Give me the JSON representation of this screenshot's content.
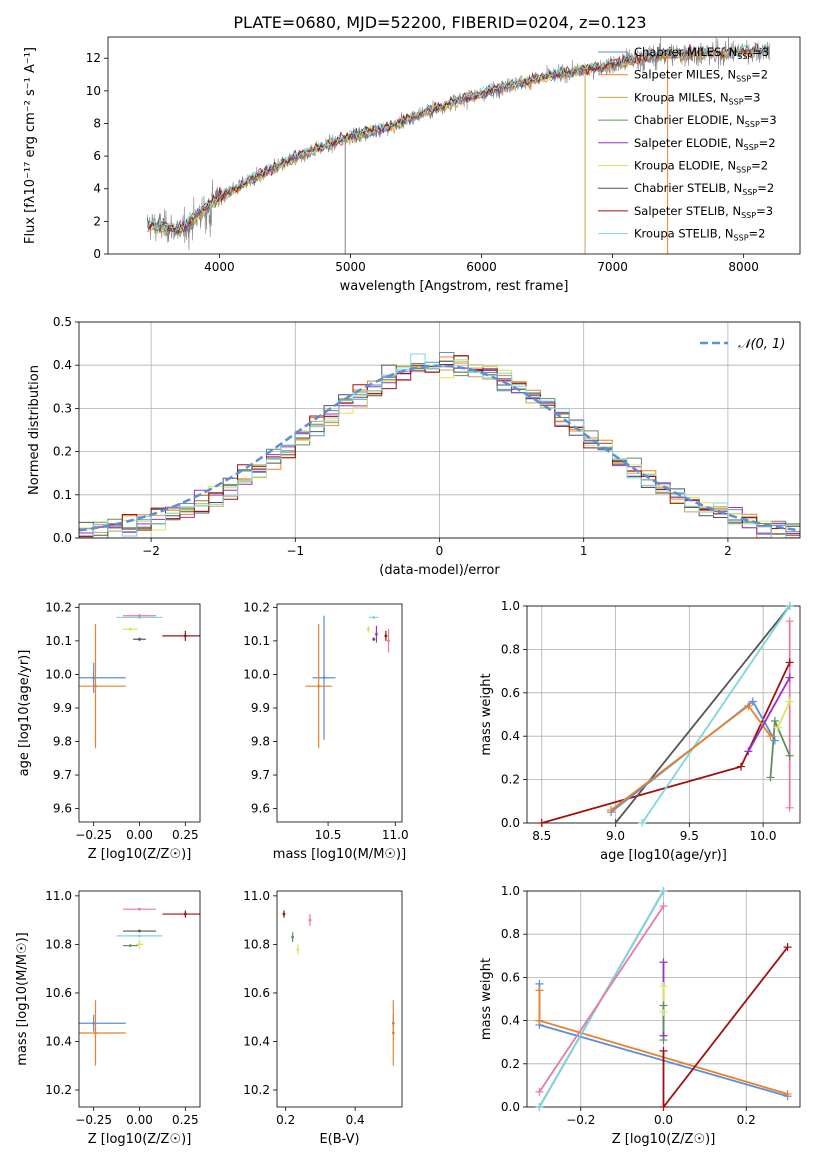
{
  "title": "PLATE=0680, MJD=52200, FIBERID=0204, z=0.123",
  "series_colors": {
    "Chabrier MILES": "#5b8fd6",
    "Salpeter MILES": "#e8822a",
    "Kroupa MILES": "#c9a64a",
    "Chabrier ELODIE": "#5f8f5f",
    "Salpeter ELODIE": "#9b30c2",
    "Kroupa ELODIE": "#d9e65a",
    "Chabrier STELIB": "#555555",
    "Salpeter STELIB": "#a01010",
    "Kroupa STELIB": "#7fd6e0",
    "pink": "#e87aa8",
    "green": "#4aa84a",
    "observed": "#808080"
  },
  "chart_data": [
    {
      "type": "line",
      "panel": "spectrum",
      "title": "PLATE=0680, MJD=52200, FIBERID=0204, z=0.123",
      "xlabel": "wavelength [Angstrom, rest frame]",
      "ylabel": "Flux [fλ10⁻¹⁷ erg cm⁻² s⁻¹ A⁻¹]",
      "xlim": [
        3150,
        8430
      ],
      "ylim": [
        0,
        13.3
      ],
      "xticks": [
        "4000",
        "5000",
        "6000",
        "7000",
        "8000"
      ],
      "yticks": [
        "0",
        "2",
        "4",
        "6",
        "8",
        "10",
        "12"
      ],
      "legend_position": "top-right",
      "legend": [
        {
          "base": "Chabrier MILES, N",
          "sub": "SSP",
          "tail": "=3"
        },
        {
          "base": "Salpeter MILES, N",
          "sub": "SSP",
          "tail": "=2"
        },
        {
          "base": "Kroupa MILES, N",
          "sub": "SSP",
          "tail": "=3"
        },
        {
          "base": "Chabrier ELODIE, N",
          "sub": "SSP",
          "tail": "=3"
        },
        {
          "base": "Salpeter ELODIE, N",
          "sub": "SSP",
          "tail": "=2"
        },
        {
          "base": "Kroupa ELODIE, N",
          "sub": "SSP",
          "tail": "=2"
        },
        {
          "base": "Chabrier STELIB, N",
          "sub": "SSP",
          "tail": "=2"
        },
        {
          "base": "Salpeter STELIB, N",
          "sub": "SSP",
          "tail": "=3"
        },
        {
          "base": "Kroupa STELIB, N",
          "sub": "SSP",
          "tail": "=2"
        }
      ],
      "continuum": {
        "x": [
          3450,
          3700,
          3950,
          4250,
          4600,
          5000,
          5300,
          5600,
          5900,
          6200,
          6500,
          6800,
          7100,
          7400,
          7700,
          8000,
          8200
        ],
        "y": [
          1.8,
          1.5,
          3.2,
          4.6,
          6.0,
          7.2,
          7.8,
          8.8,
          9.6,
          10.3,
          10.9,
          11.3,
          11.8,
          12.2,
          12.3,
          12.4,
          12.5
        ]
      },
      "absorption_spikes_x": [
        4960,
        6790,
        7420
      ]
    },
    {
      "type": "histogram",
      "panel": "residuals",
      "xlabel": "(data-model)/error",
      "ylabel": "Normed distribution",
      "xlim": [
        -2.5,
        2.5
      ],
      "ylim": [
        0,
        0.5
      ],
      "xticks": [
        "−2",
        "−1",
        "0",
        "1",
        "2"
      ],
      "yticks": [
        "0.0",
        "0.1",
        "0.2",
        "0.3",
        "0.4",
        "0.5"
      ],
      "reference_curve": "𝒩(0, 1)",
      "legend_position": "top-right",
      "bin_width": 0.1
    },
    {
      "type": "scatter",
      "panel": "Z-age",
      "xlabel": "Z [log10(Z/Z☉)]",
      "ylabel": "age  [log10(age/yr)]",
      "xlim": [
        -0.33,
        0.33
      ],
      "ylim": [
        9.56,
        10.21
      ],
      "xticks": [
        "−0.25",
        "0.00",
        "0.25"
      ],
      "yticks": [
        "9.6",
        "9.7",
        "9.8",
        "9.9",
        "10.0",
        "10.1",
        "10.2"
      ],
      "points": [
        {
          "s": "Chabrier MILES",
          "x": -0.25,
          "y": 9.99,
          "xe": 0.35,
          "ye": 0.09
        },
        {
          "s": "Salpeter MILES",
          "x": -0.24,
          "y": 9.965,
          "xe": 0.33,
          "ye": 0.37
        },
        {
          "s": "Salpeter STELIB",
          "x": 0.25,
          "y": 10.115,
          "xe": 0.25,
          "ye": 0.03
        },
        {
          "s": "Kroupa STELIB",
          "x": 0.0,
          "y": 10.17,
          "xe": 0.25,
          "ye": 0.01
        },
        {
          "s": "Chabrier STELIB",
          "x": 0.0,
          "y": 10.105,
          "xe": 0.07,
          "ye": 0.01
        },
        {
          "s": "Kroupa ELODIE",
          "x": -0.05,
          "y": 10.135,
          "xe": 0.08,
          "ye": 0.01
        },
        {
          "s": "pink",
          "x": 0.0,
          "y": 10.175,
          "xe": 0.18,
          "ye": 0.01
        }
      ]
    },
    {
      "type": "scatter",
      "panel": "mass-age",
      "xlabel": "mass [log10(M/M☉)]",
      "ylabel": "",
      "xlim": [
        10.12,
        11.05
      ],
      "ylim": [
        9.56,
        10.21
      ],
      "xticks": [
        "10.5",
        "11.0"
      ],
      "yticks": [
        "9.6",
        "9.7",
        "9.8",
        "9.9",
        "10.0",
        "10.1",
        "10.2"
      ],
      "points": [
        {
          "s": "Chabrier MILES",
          "x": 10.47,
          "y": 9.99,
          "xe": 0.17,
          "ye": 0.37
        },
        {
          "s": "Salpeter MILES",
          "x": 10.43,
          "y": 9.965,
          "xe": 0.2,
          "ye": 0.37
        },
        {
          "s": "Salpeter STELIB",
          "x": 10.93,
          "y": 10.115,
          "xe": 0.02,
          "ye": 0.03
        },
        {
          "s": "Kroupa STELIB",
          "x": 10.84,
          "y": 10.17,
          "xe": 0.07,
          "ye": 0.01
        },
        {
          "s": "Chabrier STELIB",
          "x": 10.84,
          "y": 10.105,
          "xe": 0.02,
          "ye": 0.01
        },
        {
          "s": "Kroupa ELODIE",
          "x": 10.8,
          "y": 10.135,
          "xe": 0.03,
          "ye": 0.02
        },
        {
          "s": "Salpeter ELODIE",
          "x": 10.86,
          "y": 10.12,
          "xe": 0.01,
          "ye": 0.05
        },
        {
          "s": "pink",
          "x": 10.95,
          "y": 10.1,
          "xe": 0.0,
          "ye": 0.07
        }
      ]
    },
    {
      "type": "line",
      "panel": "age-weight",
      "xlabel": "age  [log10(age/yr)]",
      "ylabel": "mass weight",
      "xlim": [
        8.4,
        10.25
      ],
      "ylim": [
        0,
        1
      ],
      "xticks": [
        "8.5",
        "9.0",
        "9.5",
        "10.0"
      ],
      "yticks": [
        "0.0",
        "0.2",
        "0.4",
        "0.6",
        "0.8",
        "1.0"
      ],
      "series": [
        {
          "s": "Salpeter STELIB",
          "x": [
            8.5,
            9.85,
            10.18
          ],
          "y": [
            0.0,
            0.26,
            0.74
          ]
        },
        {
          "s": "Chabrier STELIB",
          "x": [
            9.0,
            10.18
          ],
          "y": [
            0.0,
            1.0
          ]
        },
        {
          "s": "Kroupa STELIB",
          "x": [
            9.18,
            10.18
          ],
          "y": [
            0.0,
            1.0
          ]
        },
        {
          "s": "Chabrier MILES",
          "x": [
            8.97,
            9.93,
            10.08
          ],
          "y": [
            0.05,
            0.56,
            0.38
          ]
        },
        {
          "s": "Salpeter MILES",
          "x": [
            8.97,
            9.9,
            10.05
          ],
          "y": [
            0.06,
            0.54,
            0.4
          ]
        },
        {
          "s": "Salpeter ELODIE",
          "x": [
            9.9,
            10.18
          ],
          "y": [
            0.33,
            0.67
          ]
        },
        {
          "s": "Chabrier ELODIE",
          "x": [
            10.05,
            10.08,
            10.18
          ],
          "y": [
            0.21,
            0.47,
            0.31
          ]
        },
        {
          "s": "Kroupa ELODIE",
          "x": [
            10.1,
            10.18
          ],
          "y": [
            0.44,
            0.56
          ]
        },
        {
          "s": "pink",
          "x": [
            10.18,
            10.18
          ],
          "y": [
            0.07,
            0.93
          ]
        }
      ]
    },
    {
      "type": "scatter",
      "panel": "Z-mass",
      "xlabel": "Z [log10(Z/Z☉)]",
      "ylabel": "mass [log10(M/M☉)]",
      "xlim": [
        -0.33,
        0.33
      ],
      "ylim": [
        10.13,
        11.02
      ],
      "xticks": [
        "−0.25",
        "0.00",
        "0.25"
      ],
      "yticks": [
        "10.2",
        "10.4",
        "10.6",
        "10.8",
        "11.0"
      ],
      "points": [
        {
          "s": "Chabrier MILES",
          "x": -0.25,
          "y": 10.475,
          "xe": 0.35,
          "ye": 0.07
        },
        {
          "s": "Salpeter MILES",
          "x": -0.24,
          "y": 10.435,
          "xe": 0.33,
          "ye": 0.27
        },
        {
          "s": "Salpeter STELIB",
          "x": 0.25,
          "y": 10.925,
          "xe": 0.25,
          "ye": 0.03
        },
        {
          "s": "Kroupa STELIB",
          "x": 0.0,
          "y": 10.835,
          "xe": 0.25,
          "ye": 0.01
        },
        {
          "s": "Chabrier STELIB",
          "x": 0.0,
          "y": 10.855,
          "xe": 0.18,
          "ye": 0.01
        },
        {
          "s": "Chabrier ELODIE",
          "x": -0.05,
          "y": 10.795,
          "xe": 0.08,
          "ye": 0.01
        },
        {
          "s": "Kroupa ELODIE",
          "x": 0.0,
          "y": 10.8,
          "xe": 0.04,
          "ye": 0.04
        },
        {
          "s": "pink",
          "x": 0.0,
          "y": 10.945,
          "xe": 0.18,
          "ye": 0.01
        }
      ]
    },
    {
      "type": "scatter",
      "panel": "EBV-mass",
      "xlabel": "E(B-V)",
      "ylabel": "",
      "xlim": [
        0.175,
        0.535
      ],
      "ylim": [
        10.13,
        11.02
      ],
      "xticks": [
        "0.2",
        "0.4"
      ],
      "yticks": [
        "10.2",
        "10.4",
        "10.6",
        "10.8",
        "11.0"
      ],
      "points": [
        {
          "s": "Chabrier MILES",
          "x": 0.51,
          "y": 10.475,
          "xe": 0,
          "ye": 0.07
        },
        {
          "s": "Salpeter MILES",
          "x": 0.51,
          "y": 10.435,
          "xe": 0,
          "ye": 0.27
        },
        {
          "s": "Salpeter STELIB",
          "x": 0.195,
          "y": 10.925,
          "xe": 0,
          "ye": 0.03
        },
        {
          "s": "Chabrier ELODIE",
          "x": 0.22,
          "y": 10.83,
          "xe": 0,
          "ye": 0.04
        },
        {
          "s": "Kroupa ELODIE",
          "x": 0.235,
          "y": 10.78,
          "xe": 0,
          "ye": 0.04
        },
        {
          "s": "pink",
          "x": 0.27,
          "y": 10.9,
          "xe": 0,
          "ye": 0.05
        }
      ]
    },
    {
      "type": "line",
      "panel": "Z-weight",
      "xlabel": "Z [log10(Z/Z☉)]",
      "ylabel": "mass weight",
      "xlim": [
        -0.33,
        0.33
      ],
      "ylim": [
        0,
        1
      ],
      "xticks": [
        "−0.2",
        "0.0",
        "0.2"
      ],
      "yticks": [
        "0.0",
        "0.2",
        "0.4",
        "0.6",
        "0.8",
        "1.0"
      ],
      "series": [
        {
          "s": "Chabrier MILES",
          "x": [
            -0.3,
            -0.3,
            0.3
          ],
          "y": [
            0.57,
            0.38,
            0.05
          ]
        },
        {
          "s": "Salpeter MILES",
          "x": [
            -0.3,
            -0.3,
            0.3
          ],
          "y": [
            0.54,
            0.4,
            0.06
          ]
        },
        {
          "s": "Salpeter STELIB",
          "x": [
            0.0,
            0.0,
            0.3
          ],
          "y": [
            0.26,
            0.0,
            0.74
          ]
        },
        {
          "s": "Chabrier STELIB",
          "x": [
            -0.3,
            0.0
          ],
          "y": [
            0.0,
            1.0
          ]
        },
        {
          "s": "Kroupa STELIB",
          "x": [
            -0.3,
            0.0
          ],
          "y": [
            0.0,
            1.0
          ]
        },
        {
          "s": "pink",
          "x": [
            -0.3,
            0.0
          ],
          "y": [
            0.07,
            0.93
          ]
        },
        {
          "s": "Salpeter ELODIE",
          "x": [
            0.0,
            0.0
          ],
          "y": [
            0.33,
            0.67
          ]
        },
        {
          "s": "Kroupa ELODIE",
          "x": [
            0.0,
            0.0
          ],
          "y": [
            0.44,
            0.56
          ]
        },
        {
          "s": "Chabrier ELODIE",
          "x": [
            0.0,
            0.0
          ],
          "y": [
            0.31,
            0.47
          ]
        }
      ]
    }
  ]
}
